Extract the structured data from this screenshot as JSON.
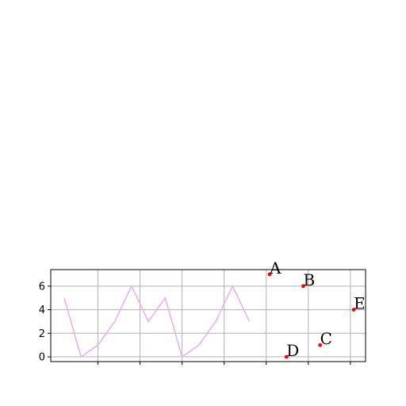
{
  "chart_data": {
    "type": "line",
    "x": [
      0,
      1,
      2,
      3,
      4,
      5,
      6,
      7,
      8,
      9,
      10,
      11
    ],
    "series": [
      {
        "values": [
          5,
          0,
          1,
          3,
          6,
          3,
          5,
          0,
          1,
          3,
          6,
          3
        ],
        "color": "#e6b3ee"
      }
    ],
    "points": [
      {
        "label": "A",
        "x": 12.2,
        "y": 7
      },
      {
        "label": "B",
        "x": 14.2,
        "y": 6
      },
      {
        "label": "C",
        "x": 15.2,
        "y": 1
      },
      {
        "label": "D",
        "x": 13.2,
        "y": 0
      },
      {
        "label": "E",
        "x": 17.2,
        "y": 4
      }
    ],
    "point_color": "#ff0000",
    "xlim": [
      -0.8,
      17.9
    ],
    "ylim": [
      -0.4,
      7.4
    ],
    "xticks": [
      2,
      4.5,
      7,
      9.5,
      12,
      14.5,
      17
    ],
    "yticks": [
      0,
      2,
      4,
      6
    ],
    "ytick_labels": [
      "0",
      "2",
      "4",
      "6"
    ],
    "grid": true,
    "title": "",
    "xlabel": "",
    "ylabel": ""
  }
}
